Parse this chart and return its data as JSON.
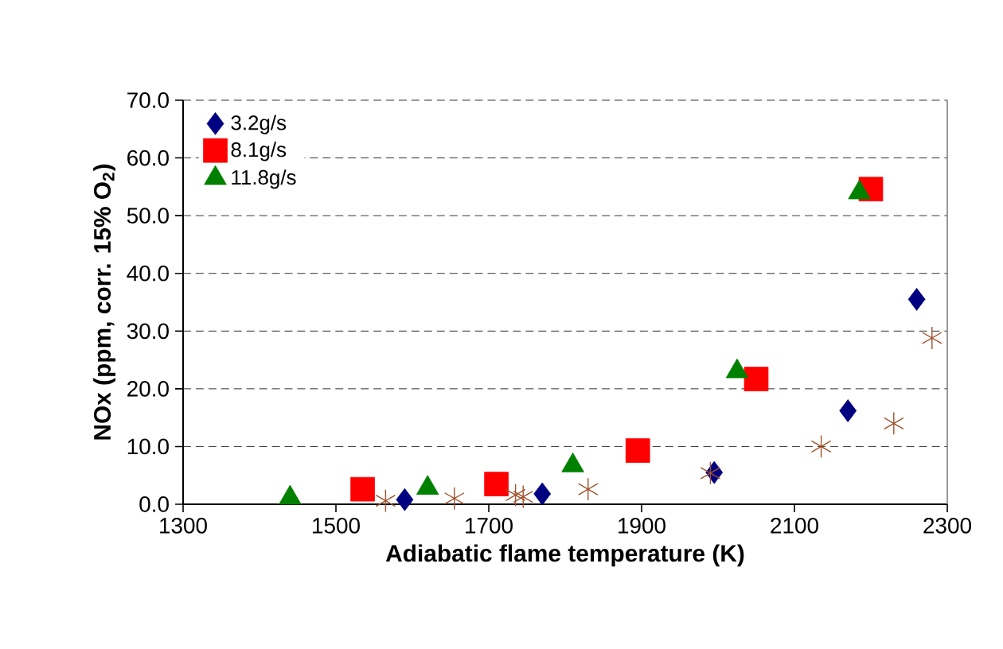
{
  "chart_data": {
    "type": "scatter",
    "xlabel": "Adiabatic flame temperature (K)",
    "ylabel": "NOx  (ppm, corr. 15% O$_{2}$)",
    "xlim": [
      1300,
      2300
    ],
    "xticks": [
      1300,
      1500,
      1700,
      1900,
      2100,
      2300
    ],
    "ylim": [
      0,
      70
    ],
    "yticks": [
      {
        "value": 0,
        "label": "0.0"
      },
      {
        "value": 10,
        "label": "10.0"
      },
      {
        "value": 20,
        "label": "20.0"
      },
      {
        "value": 30,
        "label": "30.0"
      },
      {
        "value": 40,
        "label": "40.0"
      },
      {
        "value": 50,
        "label": "50.0"
      },
      {
        "value": 60,
        "label": "60.0"
      },
      {
        "value": 70,
        "label": "70.0"
      }
    ],
    "grid": "y",
    "legend": "top left",
    "series": [
      {
        "name": "3.2g/s",
        "color": "#000080",
        "marker": "diamond",
        "x": [
          1590,
          1770,
          1995,
          2170,
          2260
        ],
        "values": [
          0.8,
          1.8,
          5.5,
          16.2,
          35.5
        ]
      },
      {
        "name": "8.1g/s",
        "color": "#ff0000",
        "marker": "square",
        "x": [
          1535,
          1710,
          1895,
          2050,
          2200
        ],
        "values": [
          2.6,
          3.5,
          9.3,
          21.7,
          54.6
        ]
      },
      {
        "name": "11.8g/s",
        "color": "#008000",
        "marker": "triangle",
        "x": [
          1440,
          1620,
          1810,
          2025,
          2185
        ],
        "values": [
          1.1,
          2.8,
          6.7,
          23.0,
          54.0
        ]
      },
      {
        "color": "#a0522d",
        "marker": "cross",
        "x": [
          1565,
          1655,
          1735,
          1745,
          1830,
          1990,
          2135,
          2230,
          2280
        ],
        "values": [
          0.6,
          1.0,
          1.6,
          1.3,
          2.6,
          5.4,
          10.0,
          14.0,
          28.8
        ]
      }
    ]
  }
}
